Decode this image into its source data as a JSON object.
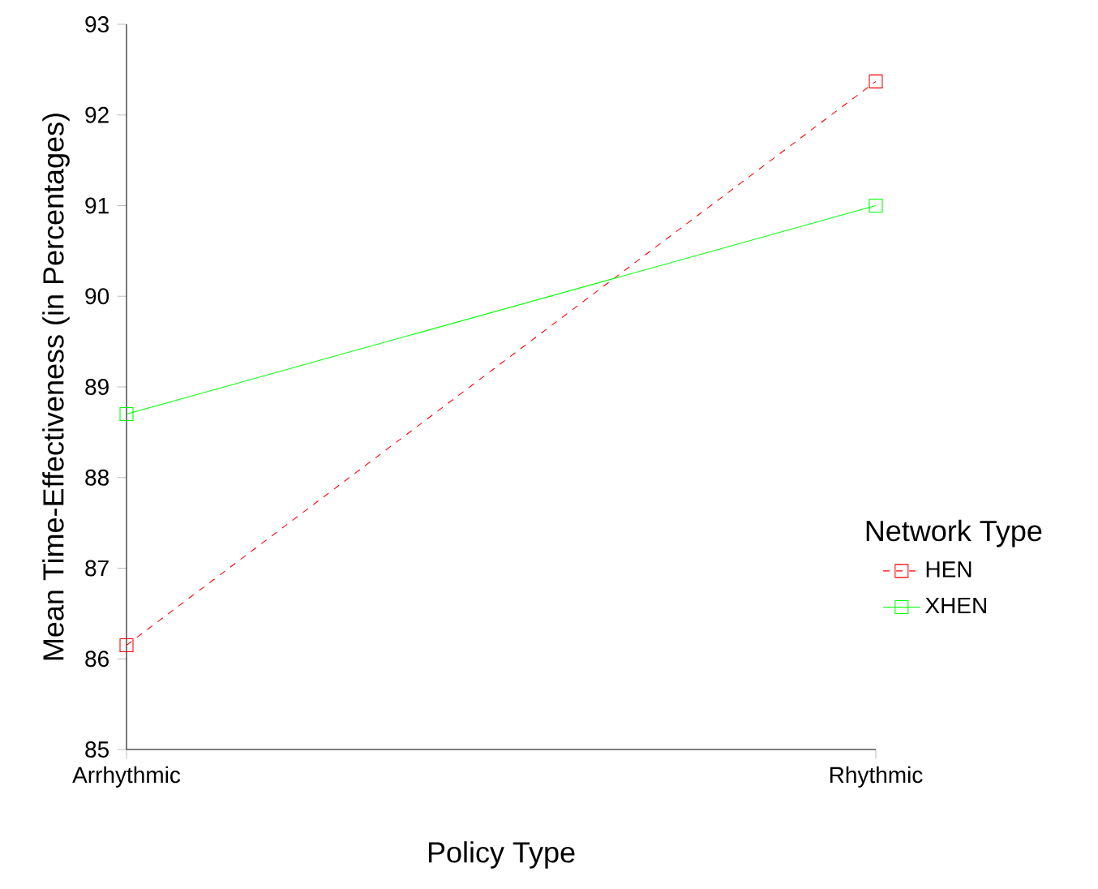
{
  "chart_data": {
    "type": "line",
    "xlabel": "Policy Type",
    "ylabel": "Mean Time-Effectiveness (in Percentages)",
    "legend_title": "Network Type",
    "categories": [
      "Arrhythmic",
      "Rhythmic"
    ],
    "series": [
      {
        "name": "HEN",
        "color": "#ff0000",
        "values": [
          86.15,
          92.37
        ],
        "line_style": "dashed"
      },
      {
        "name": "XHEN",
        "color": "#00ff00",
        "values": [
          88.7,
          91.0
        ],
        "line_style": "solid"
      }
    ],
    "ylim": [
      85,
      93
    ],
    "yticks": [
      85,
      86,
      87,
      88,
      89,
      90,
      91,
      92,
      93
    ],
    "marker": "square",
    "legend": "right",
    "grid": false
  }
}
